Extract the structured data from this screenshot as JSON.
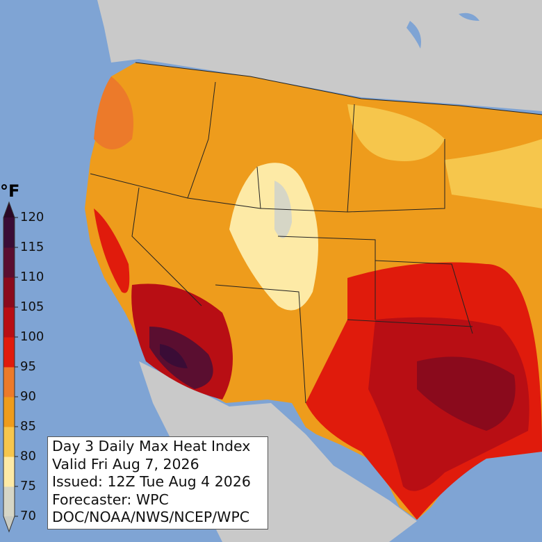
{
  "legend": {
    "unit": "°F",
    "ticks": [
      120,
      115,
      110,
      105,
      100,
      95,
      90,
      85,
      80,
      75,
      70
    ],
    "range": [
      70,
      120
    ],
    "colors": [
      "#d6d6c6",
      "#fdeaa6",
      "#f6c64c",
      "#ee9c1c",
      "#ec7a2a",
      "#e01b0c",
      "#b80e14",
      "#8a0a1c",
      "#5a0e30",
      "#3a0c36"
    ],
    "under_color": "#c9cbc2",
    "over_color": "#2a0826"
  },
  "info_box": {
    "lines": [
      "Day 3 Daily Max Heat Index",
      "Valid Fri Aug 7, 2026",
      "Issued: 12Z Tue Aug 4 2026",
      "Forecaster: WPC",
      "DOC/NOAA/NWS/NCEP/WPC"
    ]
  }
}
